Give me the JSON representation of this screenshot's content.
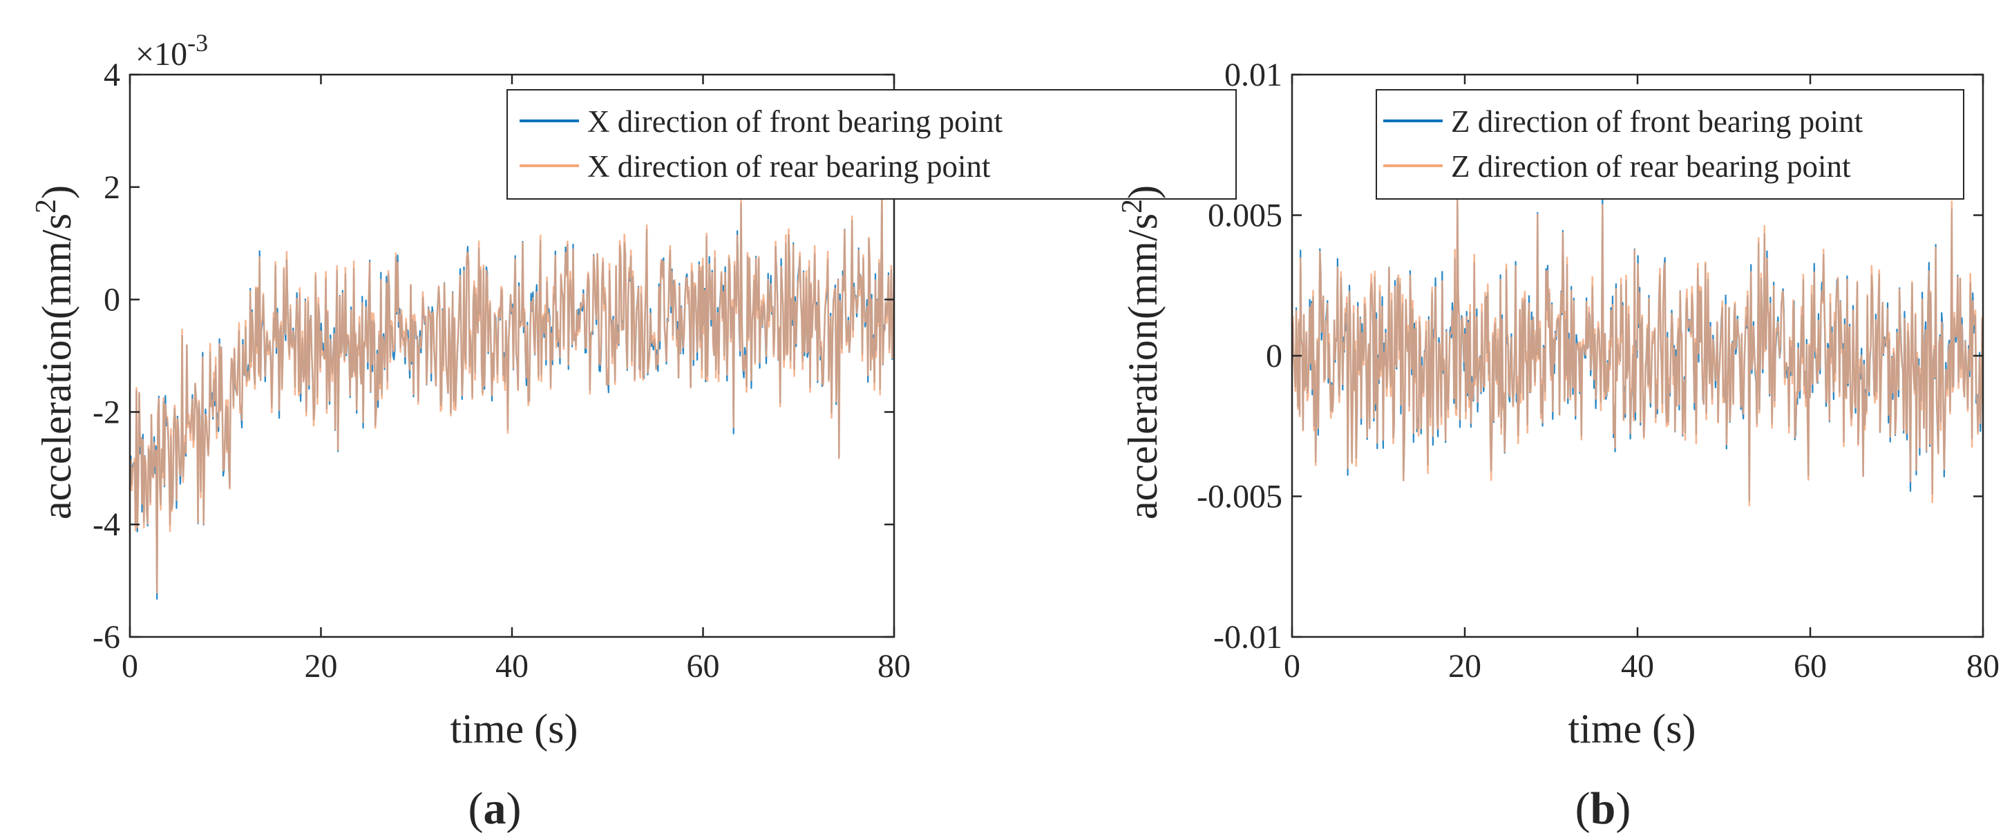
{
  "chart_data": [
    {
      "type": "line",
      "panel_label": "a",
      "xlabel": "time (s)",
      "ylabel": "acceleration(mm/s^2)",
      "ylabel_main": "acceleration(mm/s",
      "ylabel_exponent": "2",
      "ylabel_tail": ")",
      "xlim": [
        0,
        80
      ],
      "ylim": [
        -6,
        4
      ],
      "x_ticks": [
        0,
        20,
        40,
        60,
        80
      ],
      "x_tick_labels": [
        "0",
        "20",
        "40",
        "60",
        "80"
      ],
      "y_ticks": [
        -6,
        -4,
        -2,
        0,
        2,
        4
      ],
      "y_tick_labels": [
        "-6",
        "-4",
        "-2",
        "0",
        "2",
        "4"
      ],
      "y_scale_base": "×10",
      "y_scale_exponent": "-3",
      "grid": false,
      "legend_position": "top-right",
      "trend": {
        "x": [
          0,
          5,
          10,
          13,
          20,
          40,
          60,
          80
        ],
        "y": [
          -3.0,
          -2.6,
          -2.0,
          -1.0,
          -0.8,
          -0.6,
          -0.3,
          -0.3
        ]
      },
      "amplitude": 1.2,
      "n_points": 820,
      "seed": 11,
      "series": [
        {
          "name": "X direction of front bearing point",
          "color": "#0072BD"
        },
        {
          "name": "X direction of rear bearing point",
          "color": "#F4A67A"
        }
      ]
    },
    {
      "type": "line",
      "panel_label": "b",
      "xlabel": "time (s)",
      "ylabel": "acceleration(mm/s^2)",
      "ylabel_main": "acceleration(mm/s",
      "ylabel_exponent": "2",
      "ylabel_tail": ")",
      "xlim": [
        0,
        80
      ],
      "ylim": [
        -0.01,
        0.01
      ],
      "x_ticks": [
        0,
        20,
        40,
        60,
        80
      ],
      "x_tick_labels": [
        "0",
        "20",
        "40",
        "60",
        "80"
      ],
      "y_ticks": [
        -0.01,
        -0.005,
        0,
        0.005,
        0.01
      ],
      "y_tick_labels": [
        "-0.01",
        "-0.005",
        "0",
        "0.005",
        "0.01"
      ],
      "grid": false,
      "legend_position": "top-right",
      "trend": {
        "x": [
          0,
          80
        ],
        "y": [
          0,
          0
        ]
      },
      "amplitude": 0.0028,
      "n_points": 820,
      "seed": 29,
      "series": [
        {
          "name": "Z direction of front bearing point",
          "color": "#0072BD"
        },
        {
          "name": "Z direction of rear bearing point",
          "color": "#F4A67A"
        }
      ]
    }
  ]
}
